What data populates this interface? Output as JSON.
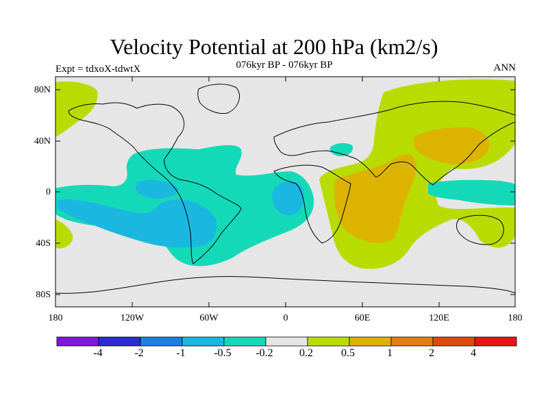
{
  "title": "Velocity Potential at 200 hPa (km2/s)",
  "subtitle": "076kyr BP - 076kyr BP",
  "left_label": "Expt = tdxoX-tdwtX",
  "right_label": "ANN",
  "y_ticks": [
    "80N",
    "40N",
    "0",
    "40S",
    "80S"
  ],
  "x_ticks": [
    "180",
    "120W",
    "60W",
    "0",
    "60E",
    "120E",
    "180"
  ],
  "colorbar": {
    "colors": [
      "#7f17e0",
      "#2a2ad6",
      "#1f7fe0",
      "#1ab8e0",
      "#14d9b8",
      "#e6e6e6",
      "#b8dc00",
      "#dcb400",
      "#e07f12",
      "#e04a12",
      "#e61414"
    ],
    "labels": [
      "-4",
      "-2",
      "-1",
      "-0.5",
      "-0.2",
      "0.2",
      "0.5",
      "1",
      "2",
      "4"
    ]
  },
  "map": {
    "projection": "cylindrical equidistant",
    "lon_range": [
      -180,
      180
    ],
    "lat_range": [
      -90,
      90
    ],
    "field_colors": {
      "background": "#e6e6e6",
      "weak_negative": "#14d9b8",
      "moderate_negative": "#1ab8e0",
      "weak_positive": "#b8dc00",
      "moderate_positive": "#dcb400"
    }
  }
}
